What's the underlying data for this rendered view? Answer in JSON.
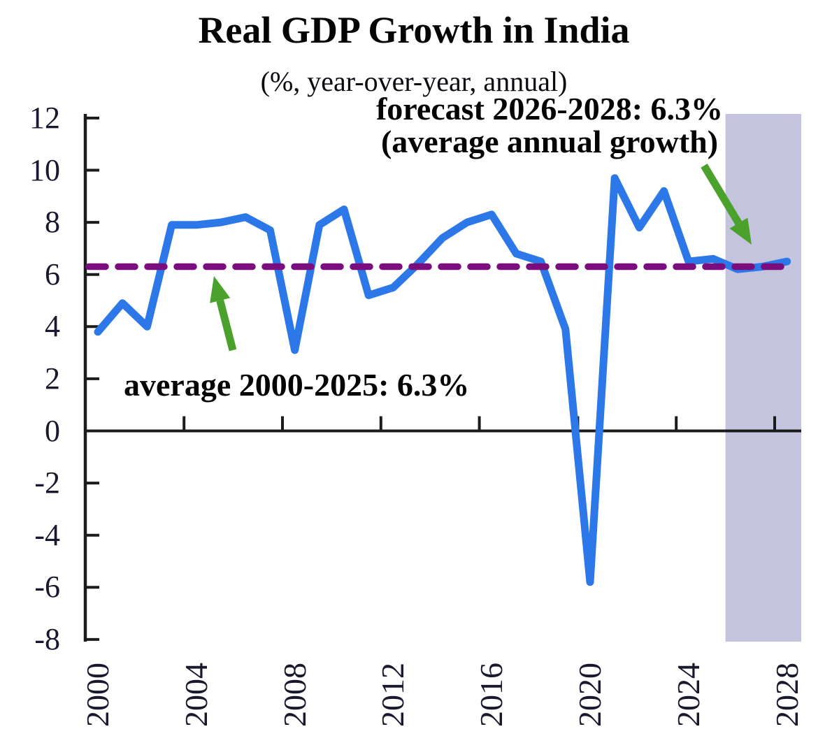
{
  "colors": {
    "line": "#2d78e8",
    "average_line": "#7c0d7e",
    "arrow": "#4aa22c",
    "forecast_band": "#c5c4de",
    "axis": "#1b1b1b",
    "tick_label": "#18182e",
    "text": "#050508",
    "background": "#ffffff"
  },
  "chart_data": {
    "type": "line",
    "title": "Real GDP Growth in India",
    "subtitle": "(%, year-over-year, annual)",
    "series_name": "Real GDP growth (%, year-over-year)",
    "x": [
      2000,
      2001,
      2002,
      2003,
      2004,
      2005,
      2006,
      2007,
      2008,
      2009,
      2010,
      2011,
      2012,
      2013,
      2014,
      2015,
      2016,
      2017,
      2018,
      2019,
      2020,
      2021,
      2022,
      2023,
      2024,
      2025,
      2026,
      2027,
      2028
    ],
    "values": [
      3.8,
      4.9,
      4.0,
      7.9,
      7.9,
      8.0,
      8.2,
      7.7,
      3.1,
      7.9,
      8.5,
      5.2,
      5.5,
      6.4,
      7.4,
      8.0,
      8.3,
      6.8,
      6.5,
      3.9,
      -5.8,
      9.7,
      7.8,
      9.2,
      6.5,
      6.6,
      6.2,
      6.3,
      6.5
    ],
    "ylim": [
      -8,
      12
    ],
    "ytick_step": 2,
    "ytick_labels": [
      "12",
      "10",
      "8",
      "6",
      "4",
      "2",
      "0",
      "-2",
      "-4",
      "-6",
      "-8"
    ],
    "xticks": [
      {
        "year": 2000,
        "label": "2000"
      },
      {
        "year": 2004,
        "label": "2004"
      },
      {
        "year": 2008,
        "label": "2008"
      },
      {
        "year": 2012,
        "label": "2012"
      },
      {
        "year": 2016,
        "label": "2016"
      },
      {
        "year": 2020,
        "label": "2020"
      },
      {
        "year": 2024,
        "label": "2024"
      },
      {
        "year": 2028,
        "label": "2028"
      }
    ],
    "average_line": {
      "value": 6.3,
      "label": "average 2000-2025: 6.3%"
    },
    "forecast": {
      "start": 2026,
      "end": 2028,
      "label_line1": "forecast 2026-2028: 6.3%",
      "label_line2": "(average annual growth)"
    },
    "grid": false,
    "legend": "none"
  }
}
